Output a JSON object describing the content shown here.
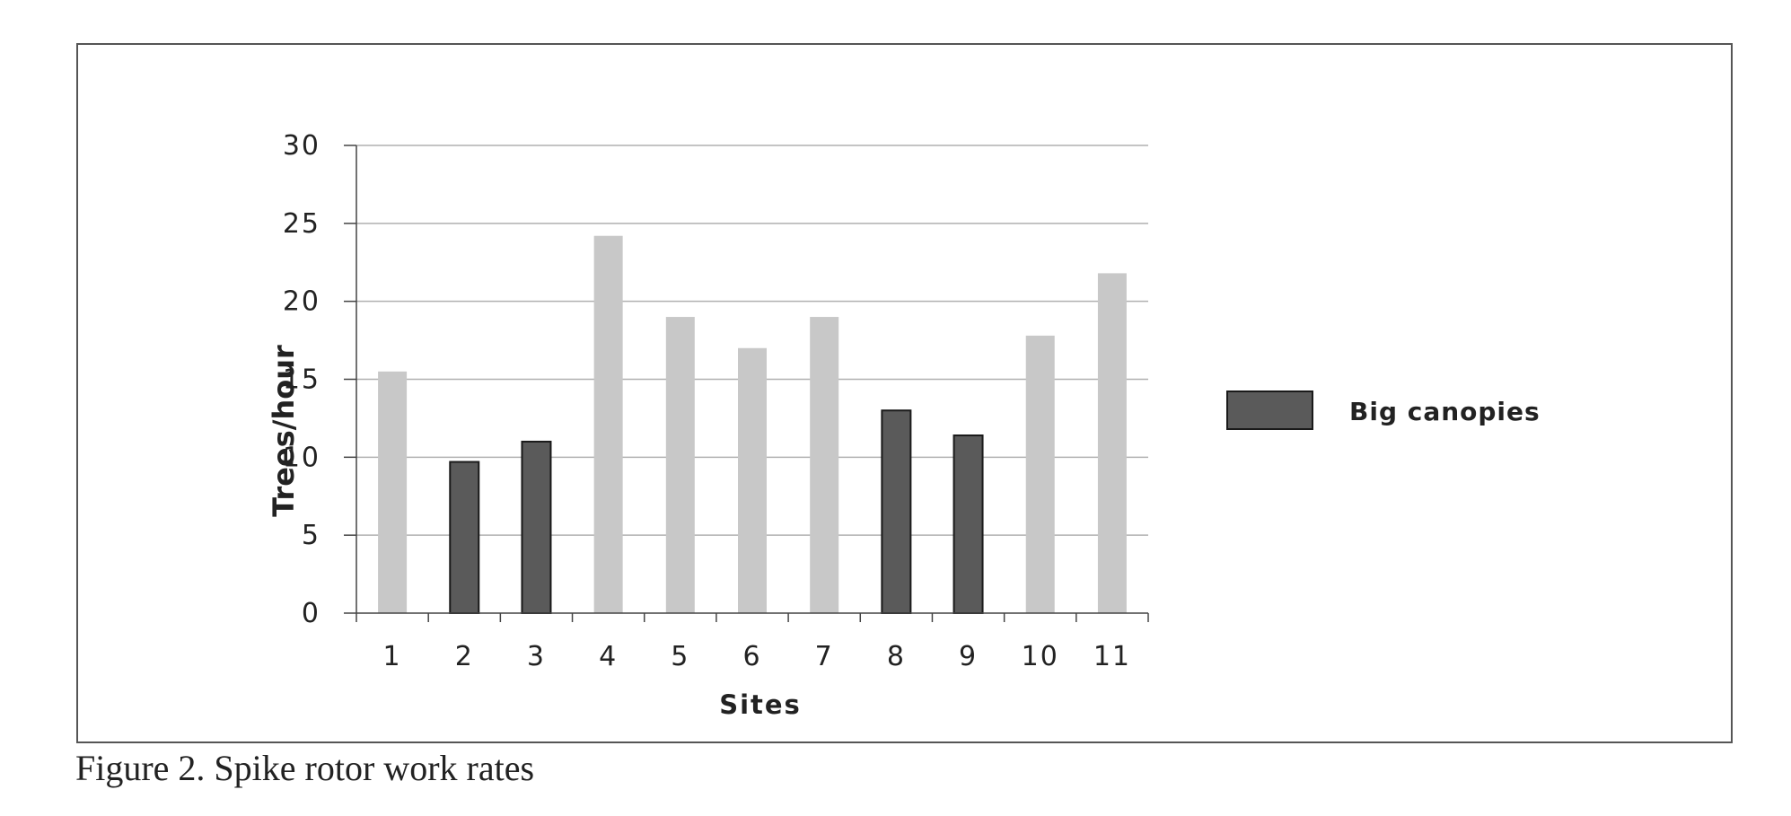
{
  "caption": "Figure 2. Spike rotor work rates",
  "chart_data": {
    "type": "bar",
    "categories": [
      "1",
      "2",
      "3",
      "4",
      "5",
      "6",
      "7",
      "8",
      "9",
      "10",
      "11"
    ],
    "values": [
      15.5,
      9.7,
      11,
      24.2,
      19,
      17,
      19,
      13,
      11.4,
      17.8,
      21.8
    ],
    "highlighted": [
      false,
      true,
      true,
      false,
      false,
      false,
      false,
      true,
      true,
      false,
      false
    ],
    "title": "",
    "xlabel": "Sites",
    "ylabel": "Trees/hour",
    "ylim": [
      0,
      30
    ],
    "yticks": [
      0,
      5,
      10,
      15,
      20,
      25,
      30
    ],
    "grid": true,
    "legend": {
      "placement": "right",
      "entries": [
        {
          "label": "Big canopies",
          "color": "#5a5a5a"
        }
      ]
    },
    "colors": {
      "default_bar": "#c8c8c8",
      "highlight_bar": "#5a5a5a",
      "highlight_stroke": "#1a1a1a",
      "grid": "#b0b0b0",
      "axis": "#444444"
    }
  }
}
